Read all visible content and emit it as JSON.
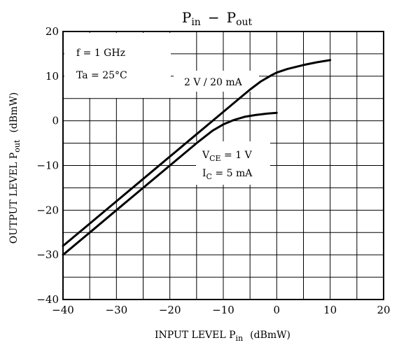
{
  "chart_data": {
    "type": "line",
    "title": {
      "main": "P",
      "sub1": "in",
      "dash": "−",
      "main2": "P",
      "sub2": "out"
    },
    "xlabel": {
      "main": "INPUT LEVEL  P",
      "sub": "in",
      "unit": "(dBmW)"
    },
    "ylabel": {
      "main": "OUTPUT LEVEL  P",
      "sub": "out",
      "unit": "(dBmW)"
    },
    "xlim": [
      -40,
      20
    ],
    "ylim": [
      -40,
      20
    ],
    "xticks": [
      -40,
      -30,
      -20,
      -10,
      0,
      10,
      20
    ],
    "yticks": [
      -40,
      -30,
      -20,
      -10,
      0,
      10,
      20
    ],
    "xtick_labels": [
      "−40",
      "−30",
      "−20",
      "−10",
      "0",
      "10",
      "20"
    ],
    "ytick_labels": [
      "−40",
      "−30",
      "−20",
      "−10",
      "0",
      "10",
      "20"
    ],
    "grid": true,
    "conditions": [
      "f = 1 GHz",
      "Ta = 25°C"
    ],
    "series": [
      {
        "name": "2 V / 20 mA",
        "x": [
          -40,
          -35,
          -30,
          -25,
          -20,
          -15,
          -10,
          -7.5,
          -5,
          -3,
          -1,
          0,
          2,
          5,
          7.5,
          10
        ],
        "y": [
          -28,
          -23,
          -18,
          -13,
          -8,
          -3,
          2,
          4.5,
          7,
          8.8,
          10.2,
          10.8,
          11.6,
          12.5,
          13.1,
          13.6
        ]
      },
      {
        "name": "VCE = 1 V, IC = 5 mA",
        "x": [
          -40,
          -35,
          -30,
          -25,
          -20,
          -15,
          -12,
          -10,
          -8,
          -6,
          -4,
          -2,
          0
        ],
        "y": [
          -30,
          -25,
          -20,
          -15,
          -10,
          -5,
          -2.2,
          -0.8,
          0.2,
          0.9,
          1.3,
          1.6,
          1.8
        ]
      }
    ],
    "annotations": {
      "s1": "2 V / 20 mA",
      "s2_line1_main": "V",
      "s2_line1_sub": "CE",
      "s2_line1_rest": " = 1 V",
      "s2_line2_main": "I",
      "s2_line2_sub": "C",
      "s2_line2_rest": " = 5 mA"
    }
  }
}
